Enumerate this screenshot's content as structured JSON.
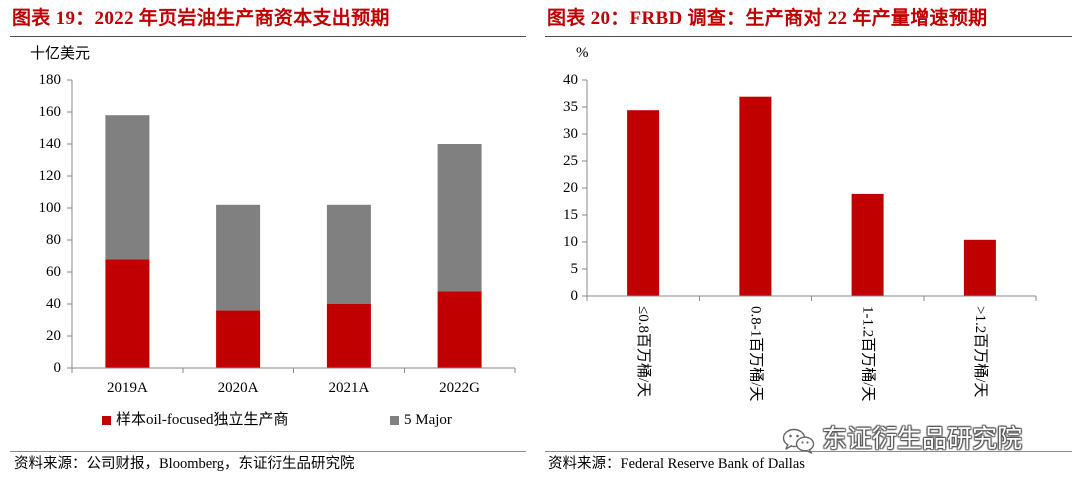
{
  "colors": {
    "title": "#C00000",
    "axis": "#8A8A8A"
  },
  "sources": [
    "资料来源：公司财报，Bloomberg，东证衍生品研究院",
    "资料来源：Federal Reserve Bank of Dallas"
  ],
  "watermark": {
    "text": "东证衍生品研究院",
    "icon": "wechat-icon"
  },
  "chart_data": [
    {
      "type": "bar",
      "stacked": true,
      "title": "图表 19：2022 年页岩油生产商资本支出预期",
      "ylabel": "十亿美元",
      "xlabel": "",
      "categories": [
        "2019A",
        "2020A",
        "2021A",
        "2022G"
      ],
      "series": [
        {
          "name": "样本oil-focused独立生产商",
          "values": [
            68,
            36,
            40,
            48
          ],
          "color": "#C00000"
        },
        {
          "name": "5 Major",
          "values": [
            90,
            66,
            62,
            92
          ],
          "color": "#808080"
        }
      ],
      "ylim": [
        0,
        180
      ],
      "yticks": [
        0,
        20,
        40,
        60,
        80,
        100,
        120,
        140,
        160,
        180
      ],
      "grid": false,
      "legend": "bottom"
    },
    {
      "type": "bar",
      "title": "图表 20：FRBD 调查：生产商对 22 年产量增速预期",
      "ylabel": "%",
      "xlabel": "",
      "categories": [
        "≤0.8百万桶/天",
        "0.8-1百万桶/天",
        "1-1.2百万桶/天",
        ">1.2百万桶/天"
      ],
      "values": [
        34.4,
        36.9,
        18.9,
        10.4
      ],
      "color": "#C00000",
      "ylim": [
        0,
        40
      ],
      "yticks": [
        0,
        5,
        10,
        15,
        20,
        25,
        30,
        35,
        40
      ],
      "grid": false,
      "legend": "none"
    }
  ]
}
